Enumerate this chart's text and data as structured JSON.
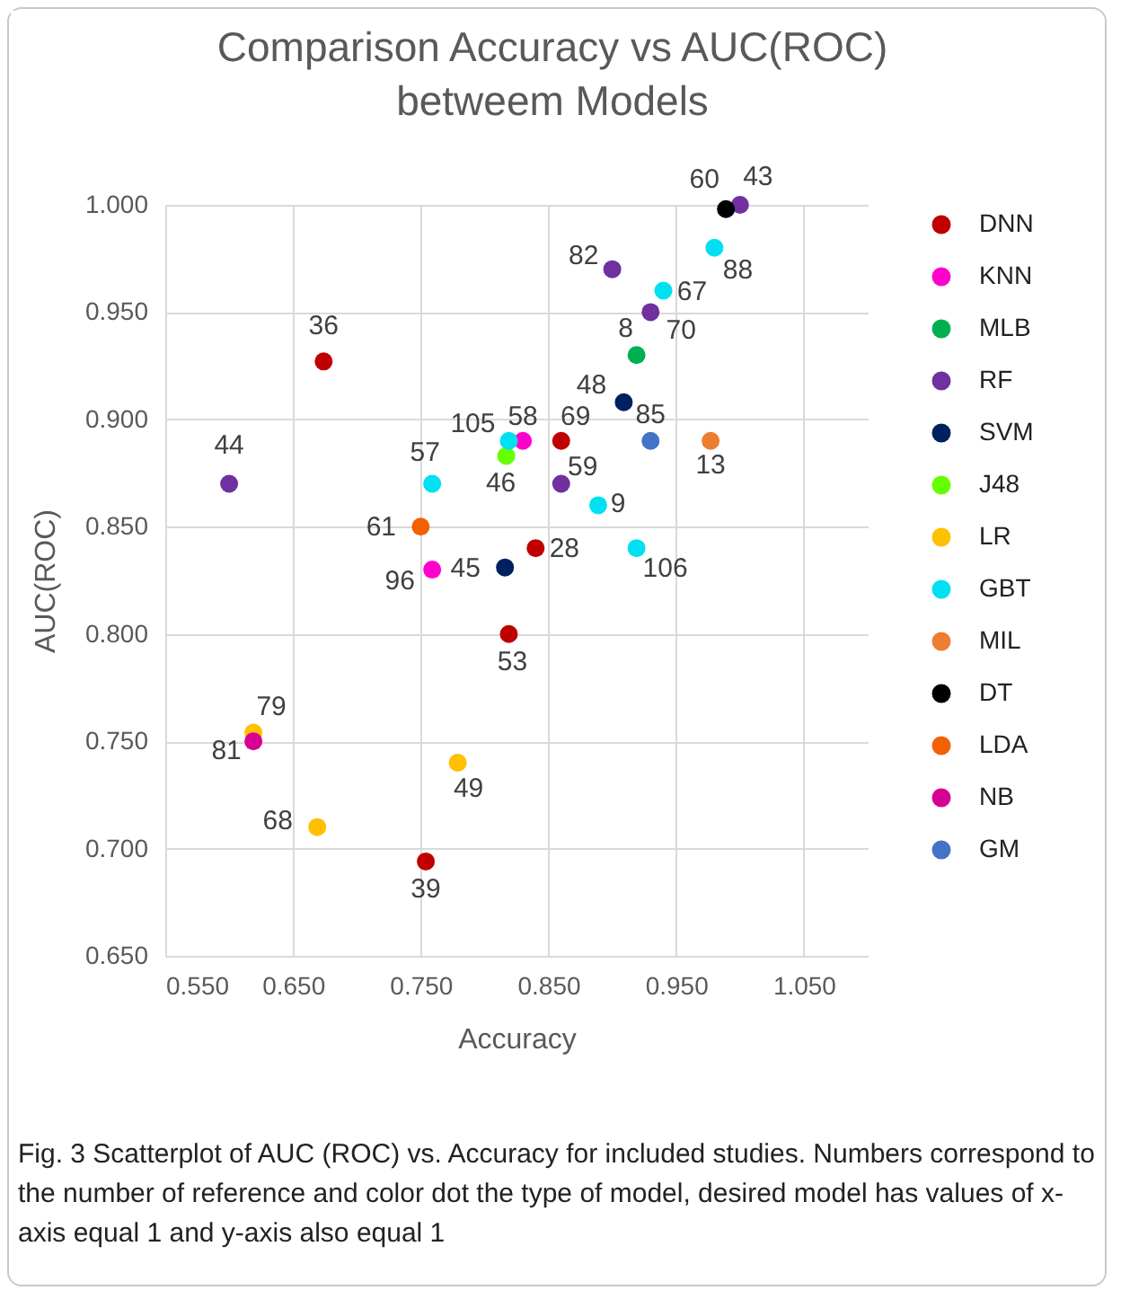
{
  "chart_data": {
    "type": "scatter",
    "title": "Comparison Accuracy vs AUC(ROC)\nbetweem Models",
    "xlabel": "Accuracy",
    "ylabel": "AUC(ROC)",
    "series": [
      {
        "name": "DNN",
        "color": "#c00000",
        "x": [
          0.674,
          0.819,
          0.86,
          0.84,
          0.754
        ],
        "values": [
          0.927,
          0.8,
          0.89,
          0.84,
          0.694
        ]
      },
      {
        "name": "KNN",
        "color": "#ff00cc",
        "x": [
          0.83,
          0.759
        ],
        "values": [
          0.89,
          0.83
        ]
      },
      {
        "name": "MLB",
        "color": "#00b050",
        "x": [
          0.919
        ],
        "values": [
          0.93
        ]
      },
      {
        "name": "RF",
        "color": "#7030a0",
        "x": [
          0.9,
          0.93,
          0.6,
          0.86,
          1.0
        ],
        "values": [
          0.97,
          0.95,
          0.87,
          0.87,
          1.0
        ]
      },
      {
        "name": "SVM",
        "color": "#002060",
        "x": [
          0.909,
          0.816
        ],
        "values": [
          0.908,
          0.831
        ]
      },
      {
        "name": "J48",
        "color": "#66ff00",
        "x": [
          0.817
        ],
        "values": [
          0.883
        ]
      },
      {
        "name": "LR",
        "color": "#ffc000",
        "x": [
          0.619,
          0.779,
          0.669
        ],
        "values": [
          0.754,
          0.74,
          0.71
        ]
      },
      {
        "name": "GBT",
        "color": "#00e0f0",
        "x": [
          0.98,
          0.94,
          0.819,
          0.759,
          0.889,
          0.919
        ],
        "values": [
          0.98,
          0.96,
          0.89,
          0.87,
          0.86,
          0.84
        ]
      },
      {
        "name": "MIL",
        "color": "#ed7d31",
        "x": [
          0.977
        ],
        "values": [
          0.89
        ]
      },
      {
        "name": "DT",
        "color": "#000000",
        "x": [
          0.989
        ],
        "values": [
          0.998
        ]
      },
      {
        "name": "LDA",
        "color": "#f26100",
        "x": [
          0.75
        ],
        "values": [
          0.85
        ]
      },
      {
        "name": "NB",
        "color": "#d60093",
        "x": [
          0.619
        ],
        "values": [
          0.75
        ]
      },
      {
        "name": "GM",
        "color": "#4472c4",
        "x": [
          0.93
        ],
        "values": [
          0.89
        ]
      }
    ],
    "annotations": [
      {
        "text": "36",
        "x": 0.674,
        "y": 0.927
      },
      {
        "text": "53",
        "x": 0.819,
        "y": 0.8
      },
      {
        "text": "69",
        "x": 0.86,
        "y": 0.89
      },
      {
        "text": "28",
        "x": 0.84,
        "y": 0.84
      },
      {
        "text": "39",
        "x": 0.754,
        "y": 0.694
      },
      {
        "text": "58",
        "x": 0.83,
        "y": 0.89
      },
      {
        "text": "96",
        "x": 0.759,
        "y": 0.83
      },
      {
        "text": "8",
        "x": 0.919,
        "y": 0.93
      },
      {
        "text": "82",
        "x": 0.9,
        "y": 0.97
      },
      {
        "text": "70",
        "x": 0.93,
        "y": 0.95
      },
      {
        "text": "44",
        "x": 0.6,
        "y": 0.87
      },
      {
        "text": "59",
        "x": 0.86,
        "y": 0.87
      },
      {
        "text": "43",
        "x": 1.0,
        "y": 1.0
      },
      {
        "text": "48",
        "x": 0.909,
        "y": 0.908
      },
      {
        "text": "45",
        "x": 0.816,
        "y": 0.831
      },
      {
        "text": "46",
        "x": 0.817,
        "y": 0.883
      },
      {
        "text": "79",
        "x": 0.619,
        "y": 0.754
      },
      {
        "text": "49",
        "x": 0.779,
        "y": 0.74
      },
      {
        "text": "68",
        "x": 0.669,
        "y": 0.71
      },
      {
        "text": "88",
        "x": 0.98,
        "y": 0.98
      },
      {
        "text": "67",
        "x": 0.94,
        "y": 0.96
      },
      {
        "text": "105",
        "x": 0.819,
        "y": 0.89
      },
      {
        "text": "57",
        "x": 0.759,
        "y": 0.87
      },
      {
        "text": "9",
        "x": 0.889,
        "y": 0.86
      },
      {
        "text": "106",
        "x": 0.919,
        "y": 0.84
      },
      {
        "text": "13",
        "x": 0.977,
        "y": 0.89
      },
      {
        "text": "60",
        "x": 0.989,
        "y": 0.998
      },
      {
        "text": "61",
        "x": 0.75,
        "y": 0.85
      },
      {
        "text": "81",
        "x": 0.619,
        "y": 0.75
      },
      {
        "text": "85",
        "x": 0.93,
        "y": 0.89
      },
      "Fig. 3  Scatterplot of AUC (ROC) vs. Accuracy for included studies. Numbers correspond to the number of reference and color dot the type of model, desired model has values of x-axis equal 1 and y-axis also equal 1"
    ],
    "xlim": [
      0.55,
      1.1
    ],
    "xticks": [
      {
        "value": 0.55,
        "label": "0.550"
      },
      {
        "value": 0.65,
        "label": "0.650"
      },
      {
        "value": 0.75,
        "label": "0.750"
      },
      {
        "value": 0.85,
        "label": "0.850"
      },
      {
        "value": 0.95,
        "label": "0.950"
      },
      {
        "value": 1.05,
        "label": "1.050"
      }
    ],
    "ylim": [
      0.65,
      1.0
    ],
    "yticks": [
      {
        "value": 0.65,
        "label": "0.650"
      },
      {
        "value": 0.7,
        "label": "0.700"
      },
      {
        "value": 0.75,
        "label": "0.750"
      },
      {
        "value": 0.8,
        "label": "0.800"
      },
      {
        "value": 0.85,
        "label": "0.850"
      },
      {
        "value": 0.9,
        "label": "0.900"
      },
      {
        "value": 0.95,
        "label": "0.950"
      },
      {
        "value": 1.0,
        "label": "1.000"
      }
    ],
    "grid": true,
    "legend": "right",
    "marker": "circle"
  }
}
